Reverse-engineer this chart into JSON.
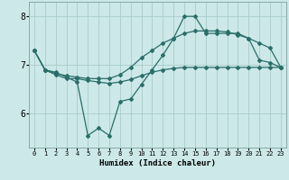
{
  "xlabel": "Humidex (Indice chaleur)",
  "background_color": "#cce8e8",
  "grid_color": "#aacccc",
  "line_color": "#2a6e6a",
  "line1_x": [
    0,
    1,
    2,
    3,
    4,
    5,
    6,
    7,
    8,
    9,
    10,
    11,
    12,
    13,
    14,
    15,
    16,
    17,
    18,
    19,
    20,
    21,
    22,
    23
  ],
  "line1_y": [
    7.3,
    6.9,
    6.85,
    6.75,
    6.65,
    5.55,
    5.7,
    5.55,
    6.25,
    6.3,
    6.6,
    6.9,
    7.2,
    7.55,
    8.0,
    8.0,
    7.65,
    7.65,
    7.65,
    7.65,
    7.55,
    7.1,
    7.05,
    6.95
  ],
  "line2_x": [
    0,
    1,
    2,
    3,
    4,
    5,
    6,
    7,
    8,
    9,
    10,
    11,
    12,
    13,
    14,
    15,
    16,
    17,
    18,
    19,
    20,
    21,
    22,
    23
  ],
  "line2_y": [
    7.3,
    6.9,
    6.8,
    6.72,
    6.72,
    6.68,
    6.65,
    6.62,
    6.65,
    6.7,
    6.78,
    6.85,
    6.9,
    6.93,
    6.95,
    6.95,
    6.95,
    6.95,
    6.95,
    6.95,
    6.95,
    6.95,
    6.95,
    6.95
  ],
  "line3_x": [
    0,
    1,
    2,
    3,
    4,
    5,
    6,
    7,
    8,
    9,
    10,
    11,
    12,
    13,
    14,
    15,
    16,
    17,
    18,
    19,
    20,
    21,
    22,
    23
  ],
  "line3_y": [
    7.3,
    6.9,
    6.82,
    6.78,
    6.75,
    6.72,
    6.72,
    6.72,
    6.8,
    6.95,
    7.15,
    7.3,
    7.45,
    7.55,
    7.65,
    7.7,
    7.7,
    7.7,
    7.68,
    7.62,
    7.55,
    7.45,
    7.35,
    6.95
  ],
  "ylim": [
    5.3,
    8.3
  ],
  "yticks": [
    6,
    7,
    8
  ],
  "xticks": [
    0,
    1,
    2,
    3,
    4,
    5,
    6,
    7,
    8,
    9,
    10,
    11,
    12,
    13,
    14,
    15,
    16,
    17,
    18,
    19,
    20,
    21,
    22,
    23
  ]
}
